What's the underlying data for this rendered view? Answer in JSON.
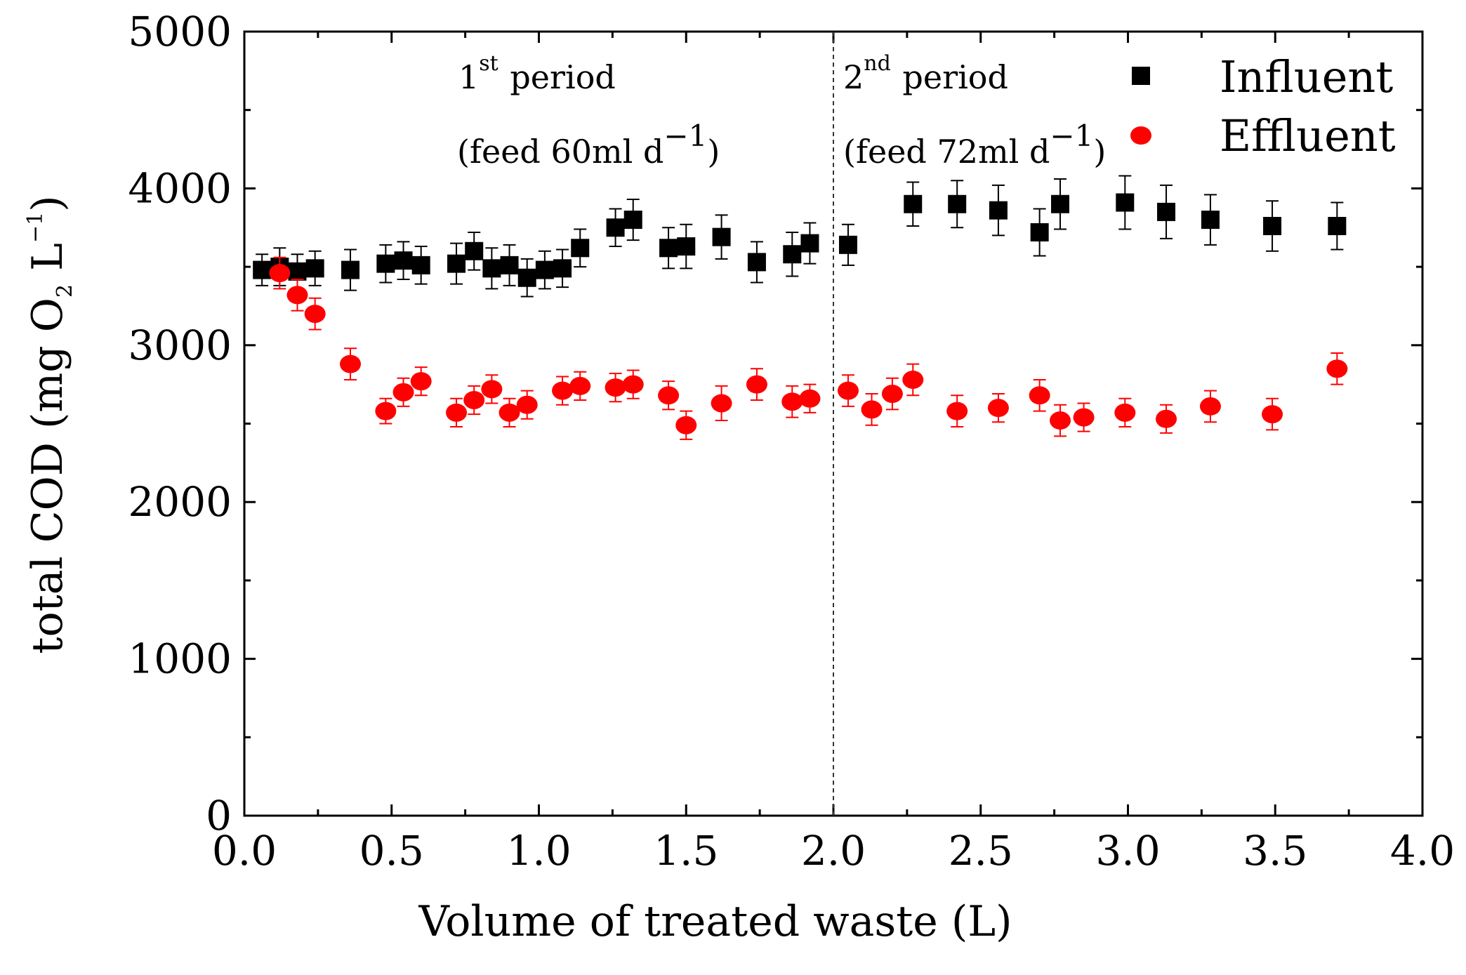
{
  "chart_data": {
    "type": "scatter",
    "xlabel": "Volume of treated waste (L)",
    "ylabel": {
      "prefix": "total COD (mg O",
      "sub": "2",
      "mid": " L",
      "sup": "−1",
      "suffix": ")"
    },
    "xlim": [
      0.0,
      4.0
    ],
    "ylim": [
      0,
      5000
    ],
    "x_ticks": [
      "0.0",
      "0.5",
      "1.0",
      "1.5",
      "2.0",
      "2.5",
      "3.0",
      "3.5",
      "4.0"
    ],
    "y_ticks": [
      "0",
      "1000",
      "2000",
      "3000",
      "4000",
      "5000"
    ],
    "divider_x": 2.0,
    "annotations": {
      "p1_line1": {
        "num": "1",
        "sup": "st",
        "text": " period"
      },
      "p1_line2": {
        "text": "(feed 60ml d",
        "sup": "−1",
        "close": ")"
      },
      "p2_line1": {
        "num": "2",
        "sup": "nd",
        "text": " period"
      },
      "p2_line2": {
        "text": "(feed 72ml d",
        "sup": "−1",
        "close": ")"
      }
    },
    "legend_position": "top-right",
    "series": [
      {
        "name": "Influent",
        "marker": "square",
        "color": "#000000",
        "points": [
          {
            "x": 0.06,
            "y": 3480,
            "err": 100
          },
          {
            "x": 0.12,
            "y": 3500,
            "err": 120
          },
          {
            "x": 0.18,
            "y": 3470,
            "err": 110
          },
          {
            "x": 0.24,
            "y": 3490,
            "err": 110
          },
          {
            "x": 0.36,
            "y": 3480,
            "err": 130
          },
          {
            "x": 0.48,
            "y": 3520,
            "err": 120
          },
          {
            "x": 0.54,
            "y": 3540,
            "err": 120
          },
          {
            "x": 0.6,
            "y": 3510,
            "err": 120
          },
          {
            "x": 0.72,
            "y": 3520,
            "err": 130
          },
          {
            "x": 0.78,
            "y": 3600,
            "err": 120
          },
          {
            "x": 0.84,
            "y": 3490,
            "err": 130
          },
          {
            "x": 0.9,
            "y": 3510,
            "err": 130
          },
          {
            "x": 0.96,
            "y": 3430,
            "err": 120
          },
          {
            "x": 1.02,
            "y": 3480,
            "err": 120
          },
          {
            "x": 1.08,
            "y": 3490,
            "err": 120
          },
          {
            "x": 1.14,
            "y": 3620,
            "err": 120
          },
          {
            "x": 1.26,
            "y": 3750,
            "err": 120
          },
          {
            "x": 1.32,
            "y": 3800,
            "err": 130
          },
          {
            "x": 1.44,
            "y": 3620,
            "err": 130
          },
          {
            "x": 1.5,
            "y": 3630,
            "err": 140
          },
          {
            "x": 1.62,
            "y": 3690,
            "err": 140
          },
          {
            "x": 1.74,
            "y": 3530,
            "err": 130
          },
          {
            "x": 1.86,
            "y": 3580,
            "err": 140
          },
          {
            "x": 1.92,
            "y": 3650,
            "err": 130
          },
          {
            "x": 2.05,
            "y": 3640,
            "err": 130
          },
          {
            "x": 2.27,
            "y": 3900,
            "err": 140
          },
          {
            "x": 2.42,
            "y": 3900,
            "err": 150
          },
          {
            "x": 2.56,
            "y": 3860,
            "err": 160
          },
          {
            "x": 2.7,
            "y": 3720,
            "err": 150
          },
          {
            "x": 2.77,
            "y": 3900,
            "err": 160
          },
          {
            "x": 2.99,
            "y": 3910,
            "err": 170
          },
          {
            "x": 3.13,
            "y": 3850,
            "err": 170
          },
          {
            "x": 3.28,
            "y": 3800,
            "err": 160
          },
          {
            "x": 3.49,
            "y": 3760,
            "err": 160
          },
          {
            "x": 3.71,
            "y": 3760,
            "err": 150
          }
        ]
      },
      {
        "name": "Effluent",
        "marker": "circle",
        "color": "#ff0000",
        "points": [
          {
            "x": 0.12,
            "y": 3460,
            "err": 100
          },
          {
            "x": 0.18,
            "y": 3320,
            "err": 100
          },
          {
            "x": 0.24,
            "y": 3200,
            "err": 100
          },
          {
            "x": 0.36,
            "y": 2880,
            "err": 100
          },
          {
            "x": 0.48,
            "y": 2580,
            "err": 80
          },
          {
            "x": 0.54,
            "y": 2700,
            "err": 90
          },
          {
            "x": 0.6,
            "y": 2770,
            "err": 90
          },
          {
            "x": 0.72,
            "y": 2570,
            "err": 90
          },
          {
            "x": 0.78,
            "y": 2650,
            "err": 90
          },
          {
            "x": 0.84,
            "y": 2720,
            "err": 90
          },
          {
            "x": 0.9,
            "y": 2570,
            "err": 90
          },
          {
            "x": 0.96,
            "y": 2620,
            "err": 90
          },
          {
            "x": 1.08,
            "y": 2710,
            "err": 90
          },
          {
            "x": 1.14,
            "y": 2740,
            "err": 90
          },
          {
            "x": 1.26,
            "y": 2730,
            "err": 90
          },
          {
            "x": 1.32,
            "y": 2750,
            "err": 90
          },
          {
            "x": 1.44,
            "y": 2680,
            "err": 90
          },
          {
            "x": 1.5,
            "y": 2490,
            "err": 90
          },
          {
            "x": 1.62,
            "y": 2630,
            "err": 110
          },
          {
            "x": 1.74,
            "y": 2750,
            "err": 100
          },
          {
            "x": 1.86,
            "y": 2640,
            "err": 100
          },
          {
            "x": 1.92,
            "y": 2660,
            "err": 90
          },
          {
            "x": 2.05,
            "y": 2710,
            "err": 100
          },
          {
            "x": 2.13,
            "y": 2590,
            "err": 100
          },
          {
            "x": 2.2,
            "y": 2690,
            "err": 100
          },
          {
            "x": 2.27,
            "y": 2780,
            "err": 100
          },
          {
            "x": 2.42,
            "y": 2580,
            "err": 100
          },
          {
            "x": 2.56,
            "y": 2600,
            "err": 90
          },
          {
            "x": 2.7,
            "y": 2680,
            "err": 100
          },
          {
            "x": 2.77,
            "y": 2520,
            "err": 100
          },
          {
            "x": 2.85,
            "y": 2540,
            "err": 90
          },
          {
            "x": 2.99,
            "y": 2570,
            "err": 90
          },
          {
            "x": 3.13,
            "y": 2530,
            "err": 90
          },
          {
            "x": 3.28,
            "y": 2610,
            "err": 100
          },
          {
            "x": 3.49,
            "y": 2560,
            "err": 100
          },
          {
            "x": 3.71,
            "y": 2850,
            "err": 100
          }
        ]
      }
    ]
  }
}
